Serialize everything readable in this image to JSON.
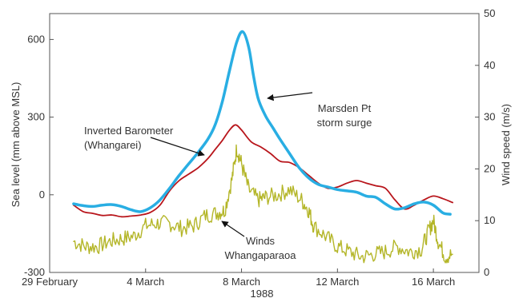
{
  "chart_data": {
    "type": "line",
    "xlabel": "1988",
    "ylabel_left": "Sea level (mm above MSL)",
    "ylabel_right": "Wind speed (m/s)",
    "x_range_days": [
      0,
      17.9
    ],
    "x_ticks": [
      {
        "day": 0,
        "label": "29 February"
      },
      {
        "day": 4,
        "label": "4 March"
      },
      {
        "day": 8,
        "label": "8 March"
      },
      {
        "day": 12,
        "label": "12 March"
      },
      {
        "day": 16,
        "label": "16 March"
      }
    ],
    "y_left_range": [
      -300,
      700
    ],
    "y_left_ticks": [
      -300,
      0,
      300,
      600
    ],
    "y_left_tick_labels": [
      "-300",
      "0",
      "300",
      "600"
    ],
    "y_right_range": [
      0,
      50
    ],
    "y_right_ticks": [
      0,
      10,
      20,
      30,
      40,
      50
    ],
    "y_right_tick_labels": [
      "0",
      "10",
      "20",
      "30",
      "40",
      "50"
    ],
    "grid": false,
    "series": [
      {
        "id": "storm_surge",
        "name": "Marsden Pt storm surge",
        "axis": "left",
        "color": "#29aee3",
        "points": [
          [
            1.0,
            -35
          ],
          [
            1.4,
            -42
          ],
          [
            1.8,
            -45
          ],
          [
            2.2,
            -40
          ],
          [
            2.6,
            -38
          ],
          [
            3.0,
            -45
          ],
          [
            3.4,
            -58
          ],
          [
            3.8,
            -65
          ],
          [
            4.2,
            -50
          ],
          [
            4.6,
            -20
          ],
          [
            5.0,
            25
          ],
          [
            5.4,
            75
          ],
          [
            5.8,
            120
          ],
          [
            6.2,
            165
          ],
          [
            6.6,
            215
          ],
          [
            6.9,
            270
          ],
          [
            7.2,
            360
          ],
          [
            7.5,
            480
          ],
          [
            7.8,
            590
          ],
          [
            8.05,
            630
          ],
          [
            8.3,
            570
          ],
          [
            8.5,
            460
          ],
          [
            8.7,
            370
          ],
          [
            9.0,
            305
          ],
          [
            9.3,
            260
          ],
          [
            9.6,
            215
          ],
          [
            10.0,
            160
          ],
          [
            10.4,
            105
          ],
          [
            10.8,
            65
          ],
          [
            11.2,
            40
          ],
          [
            11.6,
            30
          ],
          [
            12.0,
            20
          ],
          [
            12.4,
            15
          ],
          [
            12.8,
            10
          ],
          [
            13.2,
            -5
          ],
          [
            13.6,
            -10
          ],
          [
            14.0,
            -35
          ],
          [
            14.4,
            -55
          ],
          [
            14.8,
            -50
          ],
          [
            15.2,
            -35
          ],
          [
            15.6,
            -28
          ],
          [
            16.0,
            -40
          ],
          [
            16.4,
            -70
          ],
          [
            16.7,
            -75
          ]
        ]
      },
      {
        "id": "inverted_barometer",
        "name": "Inverted Barometer (Whangarei)",
        "axis": "left",
        "color": "#b8151b",
        "points": [
          [
            1.0,
            -40
          ],
          [
            1.4,
            -65
          ],
          [
            1.8,
            -72
          ],
          [
            2.2,
            -80
          ],
          [
            2.6,
            -78
          ],
          [
            3.0,
            -85
          ],
          [
            3.4,
            -82
          ],
          [
            3.8,
            -78
          ],
          [
            4.2,
            -68
          ],
          [
            4.6,
            -40
          ],
          [
            5.0,
            15
          ],
          [
            5.4,
            55
          ],
          [
            5.8,
            80
          ],
          [
            6.2,
            105
          ],
          [
            6.6,
            140
          ],
          [
            6.9,
            175
          ],
          [
            7.2,
            210
          ],
          [
            7.5,
            250
          ],
          [
            7.75,
            270
          ],
          [
            8.0,
            250
          ],
          [
            8.4,
            205
          ],
          [
            8.8,
            185
          ],
          [
            9.2,
            160
          ],
          [
            9.6,
            130
          ],
          [
            10.0,
            125
          ],
          [
            10.4,
            105
          ],
          [
            10.8,
            75
          ],
          [
            11.2,
            45
          ],
          [
            11.6,
            25
          ],
          [
            12.0,
            30
          ],
          [
            12.4,
            45
          ],
          [
            12.8,
            55
          ],
          [
            13.2,
            45
          ],
          [
            13.6,
            35
          ],
          [
            14.0,
            25
          ],
          [
            14.4,
            -20
          ],
          [
            14.8,
            -55
          ],
          [
            15.2,
            -40
          ],
          [
            15.6,
            -20
          ],
          [
            16.0,
            -5
          ],
          [
            16.4,
            -15
          ],
          [
            16.8,
            -30
          ]
        ]
      },
      {
        "id": "winds",
        "name": "Winds Whangaparaoa",
        "axis": "right",
        "color": "#b4b629",
        "points": [
          [
            1.0,
            6
          ],
          [
            1.5,
            5
          ],
          [
            2.0,
            5
          ],
          [
            2.5,
            6
          ],
          [
            3.0,
            6.5
          ],
          [
            3.5,
            7
          ],
          [
            4.0,
            9
          ],
          [
            4.5,
            9.5
          ],
          [
            5.0,
            9.5
          ],
          [
            5.5,
            8.5
          ],
          [
            6.0,
            9
          ],
          [
            6.5,
            11
          ],
          [
            7.0,
            11.5
          ],
          [
            7.3,
            12
          ],
          [
            7.6,
            18
          ],
          [
            7.8,
            24
          ],
          [
            8.0,
            21
          ],
          [
            8.3,
            16
          ],
          [
            8.7,
            14
          ],
          [
            9.0,
            14.5
          ],
          [
            9.5,
            15
          ],
          [
            10.0,
            16
          ],
          [
            10.5,
            14
          ],
          [
            10.8,
            12
          ],
          [
            11.0,
            9
          ],
          [
            11.5,
            7
          ],
          [
            12.0,
            5
          ],
          [
            12.5,
            4
          ],
          [
            13.0,
            3
          ],
          [
            13.5,
            3.5
          ],
          [
            14.0,
            4
          ],
          [
            14.5,
            5
          ],
          [
            15.0,
            4
          ],
          [
            15.5,
            4.5
          ],
          [
            15.8,
            8
          ],
          [
            16.0,
            10
          ],
          [
            16.2,
            6
          ],
          [
            16.5,
            3
          ],
          [
            16.8,
            3.5
          ]
        ]
      }
    ],
    "annotations": [
      {
        "text_lines": [
          "Marsden Pt",
          "storm surge"
        ],
        "series": "storm_surge"
      },
      {
        "text_lines": [
          "Inverted Barometer",
          "(Whangarei)"
        ],
        "series": "inverted_barometer"
      },
      {
        "text_lines": [
          "Winds",
          "Whangaparaoa"
        ],
        "series": "winds"
      }
    ]
  }
}
